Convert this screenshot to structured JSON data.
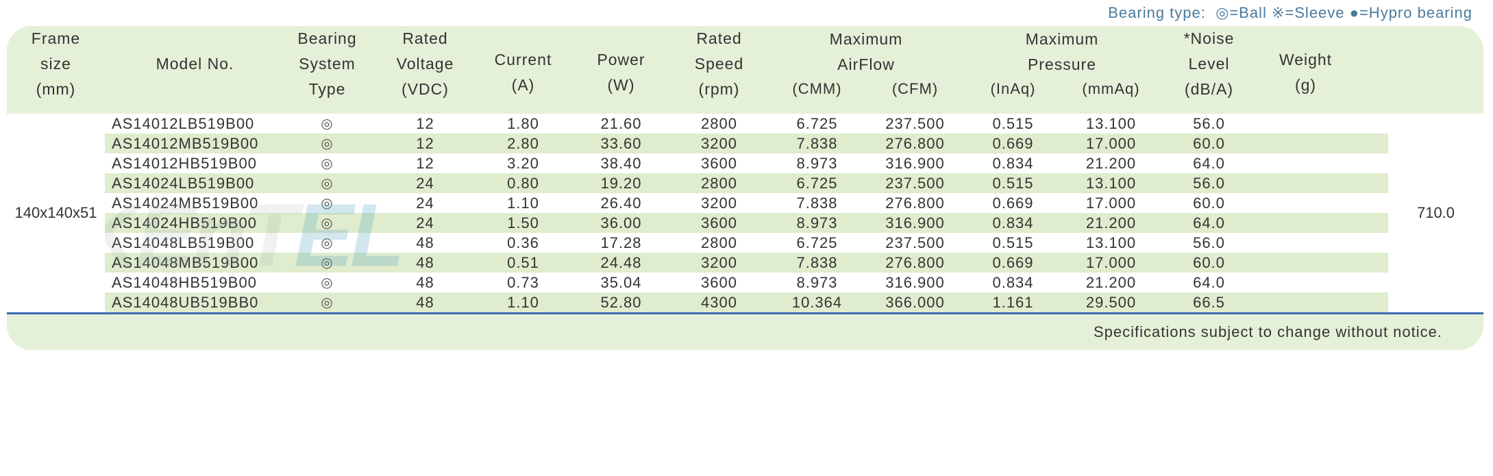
{
  "legend": {
    "prefix": "Bearing type:",
    "ball_symbol": "◎",
    "ball_label": "=Ball",
    "sleeve_symbol": "※",
    "sleeve_label": "=Sleeve",
    "hypro_symbol": "●",
    "hypro_label": "=Hypro bearing",
    "color": "#4a7a9c"
  },
  "headers": {
    "frame": {
      "l1": "Frame",
      "l2": "size",
      "l3": "(mm)"
    },
    "model": {
      "l1": "Model No."
    },
    "bearing": {
      "l1": "Bearing",
      "l2": "System",
      "l3": "Type"
    },
    "voltage": {
      "l1": "Rated",
      "l2": "Voltage",
      "l3": "(VDC)"
    },
    "current": {
      "l1": "Current",
      "l2": "(A)"
    },
    "power": {
      "l1": "Power",
      "l2": "(W)"
    },
    "speed": {
      "l1": "Rated",
      "l2": "Speed",
      "l3": "(rpm)"
    },
    "airflow": {
      "group": "Maximum",
      "group2": "AirFlow",
      "cmm": "(CMM)",
      "cfm": "(CFM)"
    },
    "pressure": {
      "group": "Maximum",
      "group2": "Pressure",
      "inaq": "(InAq)",
      "mmaq": "(mmAq)"
    },
    "noise": {
      "l1": "*Noise",
      "l2": "Level",
      "l3": "(dB/A)"
    },
    "weight": {
      "l1": "Weight",
      "l2": "(g)"
    }
  },
  "frame_size": "140x140x51",
  "weight_value": "710.0",
  "bearing_symbol": "◎",
  "rows": [
    {
      "model": "AS14012LB519B00",
      "voltage": "12",
      "current": "1.80",
      "power": "21.60",
      "speed": "2800",
      "cmm": "6.725",
      "cfm": "237.500",
      "inaq": "0.515",
      "mmaq": "13.100",
      "noise": "56.0"
    },
    {
      "model": "AS14012MB519B00",
      "voltage": "12",
      "current": "2.80",
      "power": "33.60",
      "speed": "3200",
      "cmm": "7.838",
      "cfm": "276.800",
      "inaq": "0.669",
      "mmaq": "17.000",
      "noise": "60.0"
    },
    {
      "model": "AS14012HB519B00",
      "voltage": "12",
      "current": "3.20",
      "power": "38.40",
      "speed": "3600",
      "cmm": "8.973",
      "cfm": "316.900",
      "inaq": "0.834",
      "mmaq": "21.200",
      "noise": "64.0"
    },
    {
      "model": "AS14024LB519B00",
      "voltage": "24",
      "current": "0.80",
      "power": "19.20",
      "speed": "2800",
      "cmm": "6.725",
      "cfm": "237.500",
      "inaq": "0.515",
      "mmaq": "13.100",
      "noise": "56.0"
    },
    {
      "model": "AS14024MB519B00",
      "voltage": "24",
      "current": "1.10",
      "power": "26.40",
      "speed": "3200",
      "cmm": "7.838",
      "cfm": "276.800",
      "inaq": "0.669",
      "mmaq": "17.000",
      "noise": "60.0"
    },
    {
      "model": "AS14024HB519B00",
      "voltage": "24",
      "current": "1.50",
      "power": "36.00",
      "speed": "3600",
      "cmm": "8.973",
      "cfm": "316.900",
      "inaq": "0.834",
      "mmaq": "21.200",
      "noise": "64.0"
    },
    {
      "model": "AS14048LB519B00",
      "voltage": "48",
      "current": "0.36",
      "power": "17.28",
      "speed": "2800",
      "cmm": "6.725",
      "cfm": "237.500",
      "inaq": "0.515",
      "mmaq": "13.100",
      "noise": "56.0"
    },
    {
      "model": "AS14048MB519B00",
      "voltage": "48",
      "current": "0.51",
      "power": "24.48",
      "speed": "3200",
      "cmm": "7.838",
      "cfm": "276.800",
      "inaq": "0.669",
      "mmaq": "17.000",
      "noise": "60.0"
    },
    {
      "model": "AS14048HB519B00",
      "voltage": "48",
      "current": "0.73",
      "power": "35.04",
      "speed": "3600",
      "cmm": "8.973",
      "cfm": "316.900",
      "inaq": "0.834",
      "mmaq": "21.200",
      "noise": "64.0"
    },
    {
      "model": "AS14048UB519BB0",
      "voltage": "48",
      "current": "1.10",
      "power": "52.80",
      "speed": "4300",
      "cmm": "10.364",
      "cfm": "366.000",
      "inaq": "1.161",
      "mmaq": "29.500",
      "noise": "66.5"
    }
  ],
  "footer": "Specifications subject to change without notice.",
  "styling": {
    "header_bg": "#e5f0d8",
    "row_odd_bg": "#ffffff",
    "row_even_bg": "#dfeccd",
    "border_color": "#3a6ab0",
    "text_color": "#333333",
    "font_size_body": 22,
    "font_size_header": 23,
    "border_radius": 36
  },
  "watermark": {
    "part1": "KEnT",
    "part2": "EL"
  }
}
